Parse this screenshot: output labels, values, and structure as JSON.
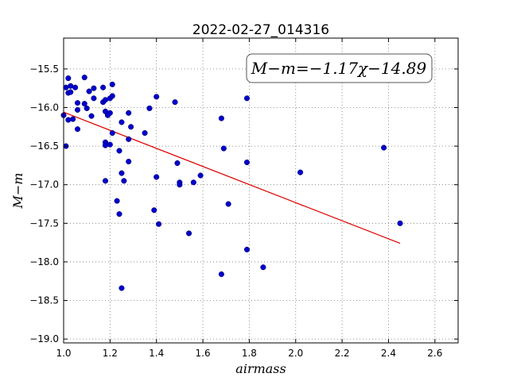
{
  "chart_data": {
    "type": "scatter",
    "title": "2022-02-27_014316",
    "xlabel": "airmass",
    "ylabel": "M−m",
    "xlim": [
      1.0,
      2.7
    ],
    "ylim": [
      -19.05,
      -15.1
    ],
    "y_inverted": true,
    "grid": true,
    "xticks": [
      1.0,
      1.2,
      1.4,
      1.6,
      1.8,
      2.0,
      2.2,
      2.4,
      2.6
    ],
    "xtick_labels": [
      "1.0",
      "1.2",
      "1.4",
      "1.6",
      "1.8",
      "2.0",
      "2.2",
      "2.4",
      "2.6"
    ],
    "yticks": [
      -15.5,
      -16.0,
      -16.5,
      -17.0,
      -17.5,
      -18.0,
      -18.5,
      -19.0
    ],
    "ytick_labels": [
      "−15.5",
      "−16.0",
      "−16.5",
      "−17.0",
      "−17.5",
      "−18.0",
      "−18.5",
      "−19.0"
    ],
    "annotation": "M−m=−1.17χ−14.89",
    "marker_color": "#0000cc",
    "fit_color": "#dd0000",
    "fit_line": {
      "x": [
        1.0,
        2.45
      ],
      "y": [
        -16.06,
        -17.76
      ]
    },
    "points": [
      {
        "x": 1.0,
        "y": -16.1
      },
      {
        "x": 1.01,
        "y": -16.5
      },
      {
        "x": 1.01,
        "y": -15.74
      },
      {
        "x": 1.02,
        "y": -15.81
      },
      {
        "x": 1.02,
        "y": -16.16
      },
      {
        "x": 1.02,
        "y": -15.62
      },
      {
        "x": 1.03,
        "y": -15.8
      },
      {
        "x": 1.03,
        "y": -15.72
      },
      {
        "x": 1.04,
        "y": -16.15
      },
      {
        "x": 1.05,
        "y": -15.74
      },
      {
        "x": 1.06,
        "y": -16.03
      },
      {
        "x": 1.06,
        "y": -15.94
      },
      {
        "x": 1.06,
        "y": -16.28
      },
      {
        "x": 1.09,
        "y": -15.61
      },
      {
        "x": 1.09,
        "y": -15.95
      },
      {
        "x": 1.1,
        "y": -16.01
      },
      {
        "x": 1.11,
        "y": -15.79
      },
      {
        "x": 1.12,
        "y": -16.11
      },
      {
        "x": 1.13,
        "y": -15.75
      },
      {
        "x": 1.13,
        "y": -15.88
      },
      {
        "x": 1.17,
        "y": -15.74
      },
      {
        "x": 1.17,
        "y": -15.93
      },
      {
        "x": 1.18,
        "y": -15.9
      },
      {
        "x": 1.18,
        "y": -16.05
      },
      {
        "x": 1.18,
        "y": -16.45
      },
      {
        "x": 1.18,
        "y": -16.49
      },
      {
        "x": 1.18,
        "y": -16.95
      },
      {
        "x": 1.19,
        "y": -16.1
      },
      {
        "x": 1.2,
        "y": -16.48
      },
      {
        "x": 1.2,
        "y": -16.07
      },
      {
        "x": 1.2,
        "y": -15.88
      },
      {
        "x": 1.21,
        "y": -15.7
      },
      {
        "x": 1.21,
        "y": -15.85
      },
      {
        "x": 1.21,
        "y": -16.33
      },
      {
        "x": 1.23,
        "y": -17.21
      },
      {
        "x": 1.24,
        "y": -16.56
      },
      {
        "x": 1.24,
        "y": -17.38
      },
      {
        "x": 1.25,
        "y": -16.85
      },
      {
        "x": 1.25,
        "y": -16.19
      },
      {
        "x": 1.25,
        "y": -18.34
      },
      {
        "x": 1.26,
        "y": -16.95
      },
      {
        "x": 1.28,
        "y": -16.07
      },
      {
        "x": 1.28,
        "y": -16.41
      },
      {
        "x": 1.29,
        "y": -16.25
      },
      {
        "x": 1.28,
        "y": -16.7
      },
      {
        "x": 1.35,
        "y": -16.33
      },
      {
        "x": 1.37,
        "y": -16.01
      },
      {
        "x": 1.39,
        "y": -17.33
      },
      {
        "x": 1.4,
        "y": -15.86
      },
      {
        "x": 1.4,
        "y": -16.9
      },
      {
        "x": 1.41,
        "y": -17.51
      },
      {
        "x": 1.48,
        "y": -15.93
      },
      {
        "x": 1.49,
        "y": -16.72
      },
      {
        "x": 1.5,
        "y": -16.97
      },
      {
        "x": 1.5,
        "y": -17.0
      },
      {
        "x": 1.54,
        "y": -17.63
      },
      {
        "x": 1.56,
        "y": -16.97
      },
      {
        "x": 1.59,
        "y": -16.88
      },
      {
        "x": 1.68,
        "y": -16.14
      },
      {
        "x": 1.68,
        "y": -18.16
      },
      {
        "x": 1.69,
        "y": -16.53
      },
      {
        "x": 1.71,
        "y": -17.25
      },
      {
        "x": 1.79,
        "y": -15.88
      },
      {
        "x": 1.79,
        "y": -16.71
      },
      {
        "x": 1.79,
        "y": -17.84
      },
      {
        "x": 1.86,
        "y": -18.07
      },
      {
        "x": 2.02,
        "y": -16.84
      },
      {
        "x": 2.38,
        "y": -16.52
      },
      {
        "x": 2.45,
        "y": -17.5
      }
    ]
  }
}
